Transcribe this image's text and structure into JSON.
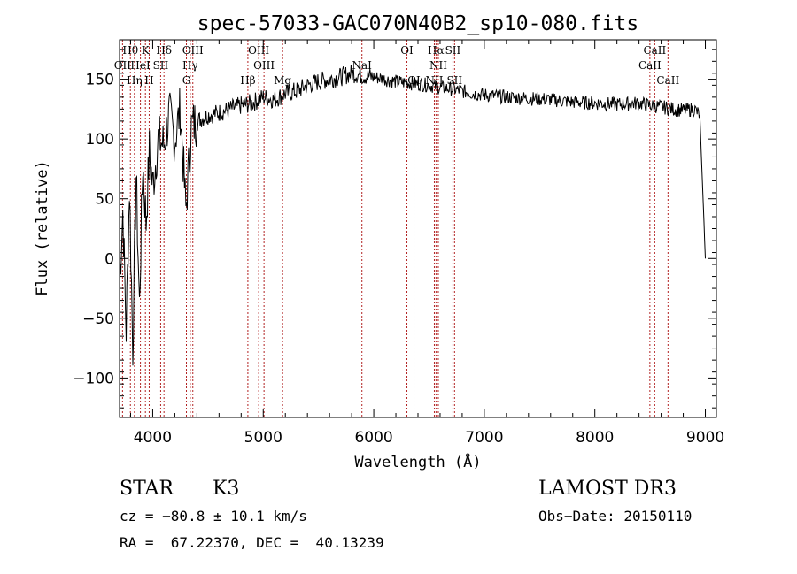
{
  "chart_data": {
    "type": "line",
    "title": "spec-57033-GAC070N40B2_sp10-080.fits",
    "xlabel": "Wavelength (Å)",
    "ylabel": "Flux (relative)",
    "xlim": [
      3700,
      9100
    ],
    "ylim": [
      -133,
      183
    ],
    "x_ticks": [
      4000,
      5000,
      6000,
      7000,
      8000,
      9000
    ],
    "y_ticks": [
      -100,
      -50,
      0,
      50,
      100,
      150
    ],
    "y_tick_labels": [
      "−100",
      "−50",
      "0",
      "50",
      "100",
      "150"
    ],
    "series": [
      {
        "name": "flux",
        "x": [
          3700,
          3730,
          3760,
          3790,
          3820,
          3850,
          3880,
          3910,
          3940,
          3970,
          4000,
          4050,
          4100,
          4150,
          4200,
          4250,
          4300,
          4350,
          4400,
          4500,
          4600,
          4700,
          4800,
          4900,
          5000,
          5100,
          5200,
          5300,
          5400,
          5500,
          5600,
          5700,
          5800,
          5900,
          6000,
          6100,
          6200,
          6300,
          6400,
          6500,
          6600,
          6700,
          6800,
          6900,
          7000,
          7200,
          7400,
          7600,
          7800,
          8000,
          8200,
          8400,
          8500,
          8600,
          8700,
          8800,
          8900,
          8950,
          9000
        ],
        "y": [
          -20,
          40,
          -60,
          60,
          -75,
          70,
          -40,
          80,
          30,
          90,
          60,
          100,
          95,
          120,
          100,
          125,
          40,
          110,
          115,
          120,
          122,
          125,
          128,
          130,
          135,
          133,
          138,
          140,
          145,
          148,
          150,
          152,
          155,
          153,
          152,
          150,
          148,
          147,
          146,
          145,
          143,
          142,
          140,
          138,
          137,
          135,
          134,
          133,
          131,
          130,
          129,
          130,
          128,
          127,
          125,
          124,
          125,
          120,
          0
        ]
      }
    ],
    "spectral_lines": [
      {
        "label": "Hθ",
        "x": 3798,
        "row": 1
      },
      {
        "label": "K",
        "x": 3934,
        "row": 1
      },
      {
        "label": "Hδ",
        "x": 4102,
        "row": 1
      },
      {
        "label": "OIII",
        "x": 4363,
        "row": 1
      },
      {
        "label": "OIII",
        "x": 4959,
        "row": 1
      },
      {
        "label": "OI",
        "x": 6300,
        "row": 1
      },
      {
        "label": "Hα",
        "x": 6563,
        "row": 1
      },
      {
        "label": "SII",
        "x": 6716,
        "row": 1
      },
      {
        "label": "CaII",
        "x": 8542,
        "row": 1
      },
      {
        "label": "OII",
        "x": 3727,
        "row": 2
      },
      {
        "label": "HeI",
        "x": 3889,
        "row": 2
      },
      {
        "label": "SII",
        "x": 4072,
        "row": 2
      },
      {
        "label": "Hγ",
        "x": 4340,
        "row": 2
      },
      {
        "label": "OIII",
        "x": 5007,
        "row": 2
      },
      {
        "label": "NaI",
        "x": 5893,
        "row": 2
      },
      {
        "label": "NII",
        "x": 6584,
        "row": 2
      },
      {
        "label": "CaII",
        "x": 8498,
        "row": 2
      },
      {
        "label": "Hη",
        "x": 3835,
        "row": 3
      },
      {
        "label": "H",
        "x": 3968,
        "row": 3
      },
      {
        "label": "G",
        "x": 4305,
        "row": 3
      },
      {
        "label": "Hβ",
        "x": 4861,
        "row": 3
      },
      {
        "label": "Mg",
        "x": 5175,
        "row": 3
      },
      {
        "label": "OI",
        "x": 6364,
        "row": 3
      },
      {
        "label": "NII",
        "x": 6548,
        "row": 3
      },
      {
        "label": "SII",
        "x": 6731,
        "row": 3
      },
      {
        "label": "CaII",
        "x": 8662,
        "row": 3
      }
    ]
  },
  "info": {
    "class": "STAR",
    "subclass": "K3",
    "survey": "LAMOST DR3",
    "cz": "cz = −80.8 ± 10.1 km/s",
    "obs_date": "Obs−Date: 20150110",
    "coords": "RA =  67.22370, DEC =  40.13239"
  }
}
